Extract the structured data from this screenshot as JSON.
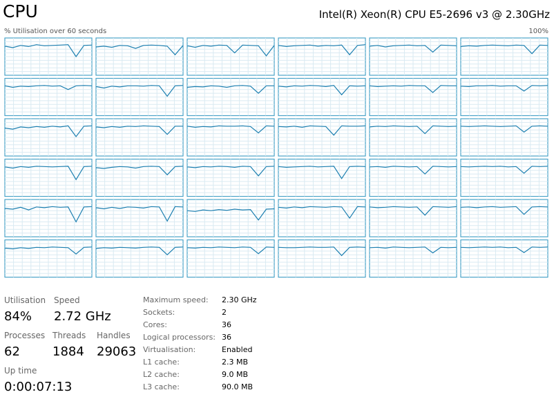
{
  "header": {
    "title": "CPU",
    "processor": "Intel(R) Xeon(R) CPU E5-2696 v3 @ 2.30GHz"
  },
  "graph": {
    "caption": "% Utilisation over 60 seconds",
    "max_label": "100%",
    "ylim": [
      0,
      100
    ],
    "cores": [
      [
        78,
        74,
        80,
        77,
        82,
        79,
        80,
        81,
        82,
        50,
        80,
        81
      ],
      [
        76,
        78,
        75,
        80,
        79,
        72,
        80,
        81,
        80,
        78,
        55,
        80
      ],
      [
        79,
        75,
        80,
        78,
        81,
        80,
        60,
        81,
        80,
        79,
        52,
        80
      ],
      [
        80,
        77,
        79,
        80,
        81,
        78,
        80,
        79,
        81,
        55,
        80,
        82
      ],
      [
        78,
        80,
        76,
        79,
        80,
        81,
        79,
        80,
        62,
        81,
        80,
        79
      ],
      [
        77,
        79,
        78,
        80,
        81,
        80,
        79,
        81,
        80,
        58,
        81,
        80
      ],
      [
        80,
        76,
        79,
        78,
        80,
        81,
        79,
        80,
        70,
        80,
        81,
        80
      ],
      [
        78,
        74,
        79,
        77,
        80,
        80,
        79,
        81,
        80,
        52,
        80,
        81
      ],
      [
        76,
        78,
        77,
        80,
        79,
        76,
        80,
        81,
        79,
        60,
        80,
        80
      ],
      [
        79,
        77,
        80,
        79,
        81,
        80,
        78,
        81,
        56,
        80,
        79,
        80
      ],
      [
        80,
        78,
        79,
        80,
        79,
        81,
        80,
        80,
        62,
        81,
        80,
        80
      ],
      [
        79,
        78,
        80,
        80,
        81,
        79,
        80,
        80,
        66,
        81,
        80,
        81
      ],
      [
        75,
        72,
        78,
        76,
        79,
        77,
        80,
        78,
        81,
        52,
        80,
        81
      ],
      [
        78,
        76,
        79,
        77,
        80,
        79,
        81,
        80,
        79,
        58,
        80,
        80
      ],
      [
        80,
        77,
        79,
        78,
        81,
        80,
        80,
        81,
        79,
        62,
        81,
        80
      ],
      [
        79,
        78,
        80,
        77,
        81,
        80,
        79,
        56,
        81,
        80,
        80,
        81
      ],
      [
        78,
        80,
        79,
        81,
        80,
        79,
        80,
        60,
        81,
        80,
        79,
        80
      ],
      [
        80,
        79,
        80,
        81,
        80,
        79,
        80,
        81,
        64,
        80,
        81,
        80
      ],
      [
        79,
        76,
        80,
        78,
        81,
        80,
        79,
        80,
        81,
        45,
        80,
        81
      ],
      [
        77,
        75,
        78,
        80,
        79,
        76,
        80,
        81,
        80,
        58,
        80,
        81
      ],
      [
        79,
        77,
        80,
        79,
        81,
        80,
        78,
        81,
        80,
        55,
        80,
        81
      ],
      [
        80,
        78,
        79,
        80,
        81,
        79,
        80,
        81,
        48,
        80,
        81,
        80
      ],
      [
        79,
        80,
        78,
        81,
        80,
        79,
        80,
        60,
        81,
        80,
        79,
        80
      ],
      [
        80,
        79,
        80,
        81,
        80,
        81,
        79,
        80,
        62,
        81,
        80,
        81
      ],
      [
        76,
        74,
        79,
        72,
        80,
        78,
        81,
        79,
        80,
        40,
        80,
        81
      ],
      [
        78,
        75,
        79,
        76,
        80,
        79,
        77,
        81,
        80,
        42,
        81,
        80
      ],
      [
        70,
        68,
        72,
        70,
        73,
        71,
        74,
        72,
        73,
        45,
        74,
        75
      ],
      [
        79,
        77,
        80,
        78,
        81,
        80,
        79,
        81,
        80,
        50,
        81,
        80
      ],
      [
        80,
        78,
        79,
        81,
        80,
        79,
        80,
        58,
        81,
        80,
        79,
        81
      ],
      [
        79,
        80,
        78,
        80,
        81,
        79,
        80,
        81,
        60,
        80,
        81,
        80
      ],
      [
        78,
        76,
        79,
        77,
        80,
        79,
        81,
        80,
        79,
        62,
        80,
        81
      ],
      [
        77,
        79,
        78,
        80,
        79,
        78,
        80,
        81,
        80,
        60,
        80,
        81
      ],
      [
        79,
        78,
        80,
        79,
        81,
        80,
        79,
        81,
        80,
        63,
        81,
        80
      ],
      [
        80,
        79,
        79,
        80,
        81,
        80,
        80,
        81,
        58,
        80,
        81,
        80
      ],
      [
        79,
        80,
        78,
        81,
        80,
        79,
        80,
        81,
        65,
        80,
        79,
        80
      ],
      [
        80,
        79,
        80,
        81,
        80,
        81,
        79,
        80,
        66,
        81,
        80,
        81
      ]
    ]
  },
  "stats": {
    "main": [
      {
        "label": "Utilisation",
        "value": "84%"
      },
      {
        "label": "Speed",
        "value": "2.72 GHz"
      },
      {
        "label": "Processes",
        "value": "62"
      },
      {
        "label": "Threads",
        "value": "1884"
      },
      {
        "label": "Handles",
        "value": "29063"
      },
      {
        "label": "Up time",
        "value": "0:00:07:13"
      }
    ],
    "details": [
      {
        "label": "Maximum speed:",
        "value": "2.30 GHz"
      },
      {
        "label": "Sockets:",
        "value": "2"
      },
      {
        "label": "Cores:",
        "value": "36"
      },
      {
        "label": "Logical processors:",
        "value": "36"
      },
      {
        "label": "Virtualisation:",
        "value": "Enabled"
      },
      {
        "label": "L1 cache:",
        "value": "2.3 MB"
      },
      {
        "label": "L2 cache:",
        "value": "9.0 MB"
      },
      {
        "label": "L3 cache:",
        "value": "90.0 MB"
      }
    ]
  }
}
